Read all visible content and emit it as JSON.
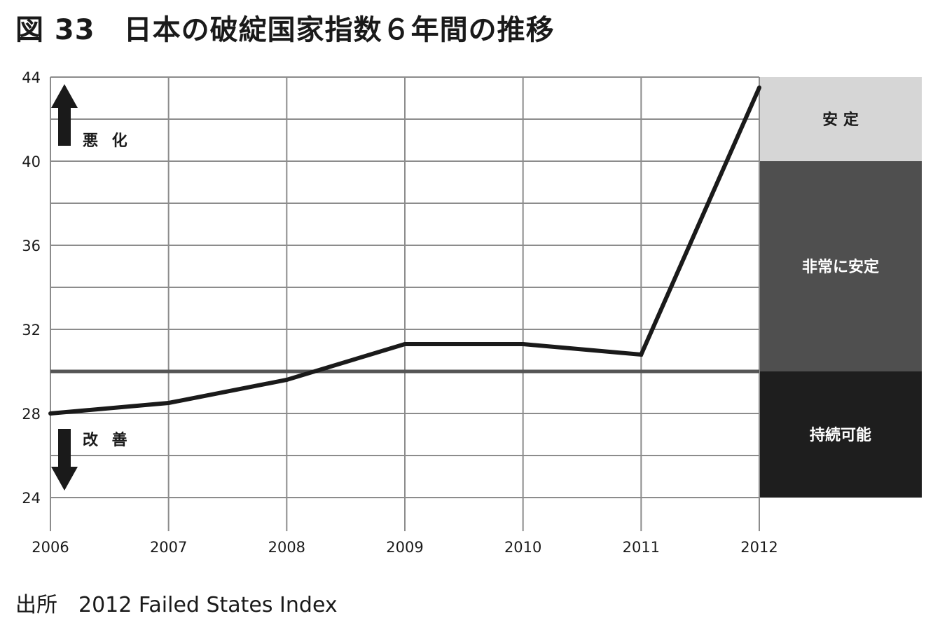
{
  "title": "図 33　日本の破綻国家指数６年間の推移",
  "source": "出所　2012 Failed States Index",
  "annotations": {
    "up": "悪 化",
    "down": "改 善"
  },
  "chart_data": {
    "type": "line",
    "title": "図 33　日本の破綻国家指数６年間の推移",
    "x": [
      "2006",
      "2007",
      "2008",
      "2009",
      "2010",
      "2011",
      "2012"
    ],
    "series": [
      {
        "values": [
          28.0,
          28.5,
          29.6,
          31.3,
          31.3,
          30.8,
          43.5
        ]
      }
    ],
    "ylim": [
      24,
      44
    ],
    "yticks": [
      24,
      28,
      32,
      36,
      40,
      44
    ],
    "grid": true,
    "reference_line": 30,
    "bands": [
      {
        "label": "安 定",
        "from": 40,
        "to": 44,
        "color": "#d6d6d6",
        "text_color": "#1a1a1a"
      },
      {
        "label": "非常に安定",
        "from": 30,
        "to": 40,
        "color": "#4f4f4f",
        "text_color": "#ffffff"
      },
      {
        "label": "持続可能",
        "from": 24,
        "to": 30,
        "color": "#1e1e1e",
        "text_color": "#ffffff"
      }
    ],
    "colors": {
      "line": "#1a1a1a",
      "grid": "#8c8c8c",
      "reference": "#555555"
    }
  }
}
